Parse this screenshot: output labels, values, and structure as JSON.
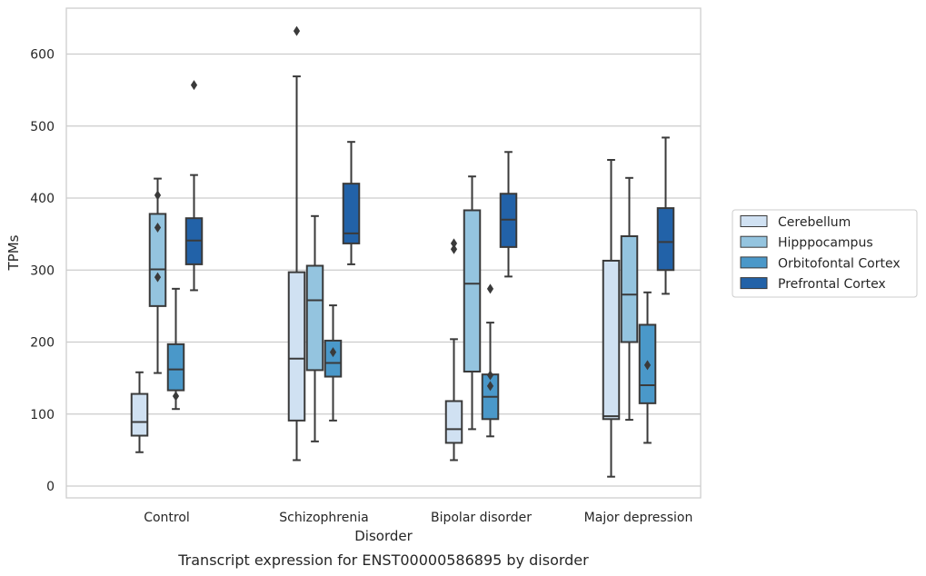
{
  "chart_data": {
    "type": "box",
    "title": "",
    "caption": "Transcript expression for ENST00000586895 by disorder",
    "xlabel": "Disorder",
    "ylabel": "TPMs",
    "ylim": [
      -15,
      665
    ],
    "yticks": [
      0,
      100,
      200,
      300,
      400,
      500,
      600
    ],
    "grid": "horizontal",
    "legend_position": "right",
    "categories": [
      "Control",
      "Schizophrenia",
      "Bipolar disorder",
      "Major depression"
    ],
    "series": [
      {
        "name": "Cerebellum",
        "color": "#d0e1f2",
        "boxes": [
          {
            "whisker_low": 47,
            "q1": 70,
            "median": 89,
            "q3": 128,
            "whisker_high": 158,
            "outliers": []
          },
          {
            "whisker_low": 36,
            "q1": 91,
            "median": 177,
            "q3": 297,
            "whisker_high": 569,
            "outliers": [
              632
            ]
          },
          {
            "whisker_low": 36,
            "q1": 60,
            "median": 79,
            "q3": 118,
            "whisker_high": 204,
            "outliers": [
              329,
              337
            ]
          },
          {
            "whisker_low": 13,
            "q1": 93,
            "median": 97,
            "q3": 313,
            "whisker_high": 453,
            "outliers": []
          }
        ]
      },
      {
        "name": "Hipppocampus",
        "color": "#94c4df",
        "boxes": [
          {
            "whisker_low": 157,
            "q1": 250,
            "median": 301,
            "q3": 378,
            "whisker_high": 427,
            "outliers": [
              290,
              359,
              404
            ]
          },
          {
            "whisker_low": 62,
            "q1": 161,
            "median": 258,
            "q3": 306,
            "whisker_high": 375,
            "outliers": []
          },
          {
            "whisker_low": 79,
            "q1": 159,
            "median": 281,
            "q3": 383,
            "whisker_high": 430,
            "outliers": []
          },
          {
            "whisker_low": 92,
            "q1": 200,
            "median": 266,
            "q3": 347,
            "whisker_high": 428,
            "outliers": []
          }
        ]
      },
      {
        "name": "Orbitofontal Cortex",
        "color": "#4a98c9",
        "boxes": [
          {
            "whisker_low": 107,
            "q1": 133,
            "median": 162,
            "q3": 197,
            "whisker_high": 274,
            "outliers": [
              125
            ]
          },
          {
            "whisker_low": 91,
            "q1": 152,
            "median": 171,
            "q3": 202,
            "whisker_high": 251,
            "outliers": [
              186
            ]
          },
          {
            "whisker_low": 69,
            "q1": 93,
            "median": 124,
            "q3": 155,
            "whisker_high": 227,
            "outliers": [
              139,
              154,
              274
            ]
          },
          {
            "whisker_low": 60,
            "q1": 115,
            "median": 140,
            "q3": 224,
            "whisker_high": 269,
            "outliers": [
              168
            ]
          }
        ]
      },
      {
        "name": "Prefrontal Cortex",
        "color": "#2262a8",
        "boxes": [
          {
            "whisker_low": 272,
            "q1": 308,
            "median": 341,
            "q3": 372,
            "whisker_high": 432,
            "outliers": [
              557
            ]
          },
          {
            "whisker_low": 308,
            "q1": 337,
            "median": 351,
            "q3": 420,
            "whisker_high": 478,
            "outliers": []
          },
          {
            "whisker_low": 291,
            "q1": 332,
            "median": 370,
            "q3": 406,
            "whisker_high": 464,
            "outliers": []
          },
          {
            "whisker_low": 267,
            "q1": 300,
            "median": 339,
            "q3": 386,
            "whisker_high": 484,
            "outliers": []
          }
        ]
      }
    ]
  }
}
